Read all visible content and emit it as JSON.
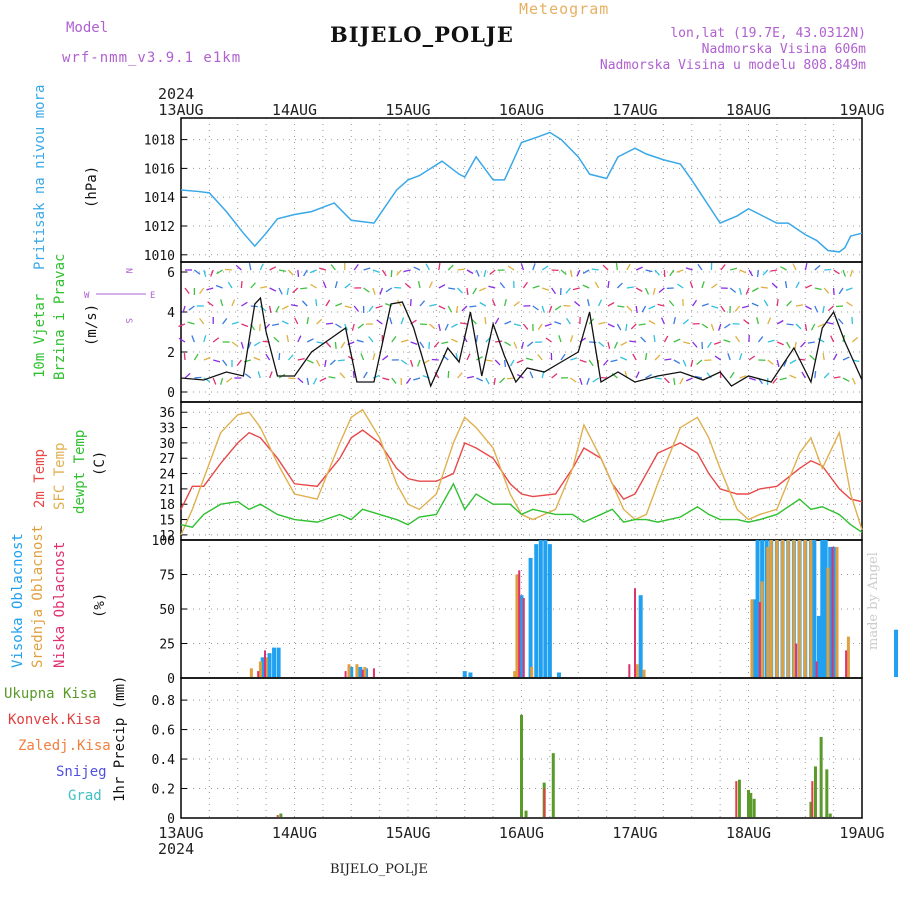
{
  "header": {
    "model_label": "Model",
    "model_version": "wrf-nmm_v3.9.1 e1km",
    "title": "Meteogram",
    "station": "BIJELO_POLJE",
    "lonlat": "lon,lat (19.7E, 43.0312N)",
    "altitude": "Nadmorska Visina 606m",
    "model_altitude": "Nadmorska Visina u modelu 808.849m"
  },
  "footer": {
    "station": "BIJELO_POLJE",
    "credit": "made by Angel"
  },
  "time_axis": {
    "year": "2024",
    "dates": [
      "13AUG",
      "14AUG",
      "15AUG",
      "16AUG",
      "17AUG",
      "18AUG",
      "19AUG"
    ]
  },
  "panel_labels": {
    "pressure_title": "Pritisak na nivou mora",
    "pressure_unit": "(hPa)",
    "wind_title_1": "10m Vjetar",
    "wind_title_2": "Brzina i Pravac",
    "wind_unit": "(m/s)",
    "compass_n": "N",
    "compass_s": "S",
    "compass_w": "W",
    "compass_e": "E",
    "temp_title_1": "2m Temp",
    "temp_title_2": "SFC Temp",
    "temp_title_3": "dewpt Temp",
    "temp_unit": "(C)",
    "cloud_title_1": "Visoka Oblacnost",
    "cloud_title_2": "Srednja Oblacnost",
    "cloud_title_3": "Niska Oblacnost",
    "cloud_unit": "(%)",
    "precip_title": "1hr Precip (mm)",
    "precip_legend": [
      "Ukupna Kisa",
      "Konvek.Kisa",
      "Zaledj.Kisa",
      "Snijeg",
      "Grad"
    ]
  },
  "colors": {
    "pressure": "#3aa8e8",
    "temp2m": "#e84848",
    "sfc": "#e0b050",
    "dewpt": "#30c030",
    "cloud_high": "#20a0f0",
    "cloud_mid": "#e0a040",
    "cloud_low": "#e03070",
    "precip_total": "#5a9a2a",
    "precip_conv": "#e04040",
    "precip_frz": "#f08040",
    "precip_snow": "#5050e0",
    "precip_hail": "#40c0c0",
    "wind_speed": "#111111",
    "wind_arrow": "#8a2be2",
    "purple_text": "#b060d0"
  },
  "chart_data": [
    {
      "type": "line",
      "name": "pressure",
      "ylabel": "Pritisak na nivou mora (hPa)",
      "ylim": [
        1009.5,
        1019.5
      ],
      "yticks": [
        1010,
        1012,
        1014,
        1016,
        1018
      ],
      "grid": true,
      "x_days": [
        0,
        0.15,
        0.25,
        0.4,
        0.55,
        0.65,
        0.75,
        0.85,
        1,
        1.15,
        1.35,
        1.5,
        1.7,
        1.9,
        2,
        2.1,
        2.3,
        2.45,
        2.5,
        2.6,
        2.75,
        2.85,
        3,
        3.15,
        3.25,
        3.35,
        3.5,
        3.6,
        3.75,
        3.85,
        4,
        4.1,
        4.25,
        4.4,
        4.5,
        4.6,
        4.75,
        4.9,
        5,
        5.15,
        5.25,
        5.35,
        5.5,
        5.6,
        5.7,
        5.8,
        5.85,
        5.9,
        6
      ],
      "values": [
        1014.5,
        1014.4,
        1014.3,
        1013,
        1011.5,
        1010.6,
        1011.5,
        1012.5,
        1012.8,
        1013,
        1013.6,
        1012.4,
        1012.2,
        1014.5,
        1015.2,
        1015.5,
        1016.5,
        1015.6,
        1015.4,
        1016.8,
        1015.2,
        1015.2,
        1017.8,
        1018.2,
        1018.5,
        1018,
        1016.8,
        1015.6,
        1015.3,
        1016.8,
        1017.4,
        1017,
        1016.6,
        1016.3,
        1015.2,
        1014,
        1012.2,
        1012.7,
        1013.2,
        1012.6,
        1012.2,
        1012.2,
        1011.4,
        1011,
        1010.3,
        1010.2,
        1010.5,
        1011.3,
        1011.5
      ],
      "series": [
        {
          "name": "Pritisak na nivou mora"
        }
      ]
    },
    {
      "type": "line",
      "name": "wind",
      "ylabel": "10m Vjetar Brzina i Pravac (m/s)",
      "ylim": [
        -0.5,
        6.5
      ],
      "yticks": [
        0,
        2,
        4,
        6
      ],
      "grid": true,
      "x_days": [
        0,
        0.2,
        0.4,
        0.55,
        0.65,
        0.7,
        0.75,
        0.85,
        1,
        1.15,
        1.3,
        1.45,
        1.55,
        1.7,
        1.85,
        1.95,
        2.05,
        2.2,
        2.35,
        2.45,
        2.55,
        2.65,
        2.75,
        2.85,
        2.95,
        3.05,
        3.2,
        3.35,
        3.5,
        3.6,
        3.7,
        3.85,
        4,
        4.2,
        4.4,
        4.6,
        4.75,
        4.85,
        5,
        5.2,
        5.4,
        5.55,
        5.65,
        5.75,
        5.85,
        6
      ],
      "values": [
        0.7,
        0.6,
        1,
        0.8,
        4.4,
        4.7,
        3,
        0.8,
        0.8,
        2,
        2.6,
        3.2,
        0.5,
        0.5,
        4.4,
        4.5,
        3.2,
        0.3,
        2.2,
        1.5,
        4,
        0.8,
        3.4,
        1.8,
        0.5,
        1.2,
        1,
        1.5,
        2,
        4,
        0.5,
        1,
        0.5,
        0.8,
        1,
        0.6,
        1,
        0.3,
        0.8,
        0.5,
        2.2,
        0.5,
        3.2,
        4,
        2.5,
        0.6
      ],
      "series": [
        {
          "name": "10m Vjetar Brzina i Pravac"
        }
      ]
    },
    {
      "type": "line",
      "name": "temperature",
      "ylabel": "(C)",
      "ylim": [
        11,
        38
      ],
      "yticks": [
        12,
        15,
        18,
        21,
        24,
        27,
        30,
        33,
        36
      ],
      "grid": true,
      "x_days": [
        0,
        0.1,
        0.2,
        0.35,
        0.5,
        0.6,
        0.7,
        0.85,
        1,
        1.2,
        1.4,
        1.5,
        1.6,
        1.75,
        1.9,
        2,
        2.1,
        2.25,
        2.4,
        2.5,
        2.6,
        2.75,
        2.9,
        3,
        3.1,
        3.3,
        3.45,
        3.55,
        3.7,
        3.8,
        3.9,
        4,
        4.1,
        4.2,
        4.4,
        4.55,
        4.65,
        4.75,
        4.9,
        5,
        5.1,
        5.25,
        5.45,
        5.55,
        5.65,
        5.8,
        5.9,
        6
      ],
      "series": [
        {
          "name": "2m Temp",
          "values": [
            17,
            21.5,
            21.5,
            26,
            30,
            32,
            31,
            27,
            22,
            21.5,
            27,
            31,
            32.5,
            30,
            25,
            23,
            22.5,
            22.5,
            24,
            30,
            29,
            27,
            22,
            20,
            19.5,
            20,
            25,
            29,
            27,
            22,
            19,
            20,
            24,
            28,
            30,
            28,
            24,
            21,
            20,
            20,
            21,
            21.5,
            25,
            26.5,
            25.5,
            21,
            19,
            18.5
          ]
        },
        {
          "name": "SFC Temp",
          "values": [
            12,
            17,
            23,
            32,
            35.5,
            36,
            33,
            26,
            20,
            19,
            30,
            35,
            36.5,
            31,
            22,
            18,
            17,
            20,
            30,
            35,
            33,
            29,
            20,
            16,
            15,
            17,
            25,
            33.5,
            27,
            22,
            17,
            15,
            16,
            22,
            33,
            35,
            31,
            25,
            17,
            15,
            16,
            17,
            28,
            31,
            25,
            32,
            20,
            13
          ]
        },
        {
          "name": "dewpt Temp",
          "values": [
            14,
            13.5,
            16,
            18,
            18.5,
            17,
            18,
            16,
            15,
            14.5,
            16,
            15,
            17,
            16,
            15,
            14,
            15.5,
            16,
            22,
            17,
            20,
            18,
            18,
            16,
            17,
            16,
            16,
            14.5,
            16,
            17,
            14.5,
            15,
            15,
            14.5,
            15.5,
            17.5,
            16,
            15,
            15,
            14.5,
            15,
            16,
            19,
            17,
            17.5,
            16,
            14,
            12.5
          ]
        }
      ]
    },
    {
      "type": "bar",
      "name": "clouds",
      "ylabel": "(%)",
      "ylim": [
        0,
        100
      ],
      "yticks": [
        0,
        25,
        50,
        75,
        100
      ],
      "grid": true,
      "series": [
        {
          "name": "Visoka Oblacnost",
          "x_days": [
            0.72,
            0.78,
            0.82,
            0.86,
            1.5,
            1.58,
            1.63,
            2.5,
            2.55,
            3.0,
            3.08,
            3.13,
            3.17,
            3.21,
            3.25,
            3.33,
            4.05,
            5.05,
            5.08,
            5.12,
            5.16,
            5.2,
            5.25,
            5.3,
            5.35,
            5.4,
            5.45,
            5.5,
            5.55,
            5.58,
            5.62,
            5.65,
            5.68,
            5.72,
            5.75,
            6.3
          ],
          "values": [
            15,
            18,
            22,
            22,
            8,
            8,
            7,
            5,
            4,
            60,
            87,
            97,
            100,
            100,
            97,
            4,
            60,
            57,
            100,
            100,
            100,
            100,
            100,
            100,
            100,
            100,
            100,
            100,
            100,
            100,
            45,
            100,
            100,
            95,
            95,
            35
          ]
        },
        {
          "name": "Srednja Oblacnost",
          "x_days": [
            0.62,
            0.7,
            0.75,
            1.48,
            1.55,
            1.62,
            2.94,
            2.96,
            3.09,
            4.02,
            4.08,
            5.03,
            5.12,
            5.17,
            5.2,
            5.25,
            5.3,
            5.35,
            5.4,
            5.45,
            5.5,
            5.55,
            5.7,
            5.78,
            5.88
          ],
          "values": [
            7,
            12,
            15,
            10,
            10,
            8,
            5,
            75,
            8,
            10,
            6,
            57,
            70,
            95,
            100,
            100,
            100,
            100,
            100,
            100,
            100,
            100,
            80,
            95,
            30
          ]
        },
        {
          "name": "Niska Oblacnost",
          "x_days": [
            0.68,
            0.74,
            1.45,
            1.6,
            1.7,
            2.98,
            3.02,
            3.95,
            4.0,
            5.1,
            5.42,
            5.6,
            5.74,
            5.86
          ],
          "values": [
            5,
            20,
            5,
            6,
            7,
            78,
            58,
            10,
            65,
            55,
            25,
            12,
            95,
            20
          ]
        }
      ]
    },
    {
      "type": "bar",
      "name": "precip",
      "ylabel": "1hr Precip (mm)",
      "ylim": [
        0,
        0.95
      ],
      "yticks": [
        0,
        0.2,
        0.4,
        0.6,
        0.8
      ],
      "grid": true,
      "series": [
        {
          "name": "Ukupna Kisa",
          "x_days": [
            0.88,
            3.0,
            3.04,
            3.2,
            3.28,
            4.92,
            5.0,
            5.02,
            5.05,
            5.55,
            5.59,
            5.64,
            5.69,
            5.72
          ],
          "values": [
            0.03,
            0.7,
            0.05,
            0.24,
            0.44,
            0.26,
            0.19,
            0.17,
            0.13,
            0.11,
            0.35,
            0.55,
            0.33,
            0.03
          ]
        },
        {
          "name": "Konvek.Kisa",
          "x_days": [
            0.87,
            3.22,
            4.91,
            5.58
          ],
          "values": [
            0.02,
            0.2,
            0.25,
            0.25
          ]
        },
        {
          "name": "Zaledj.Kisa",
          "x_days": [],
          "values": []
        },
        {
          "name": "Snijeg",
          "x_days": [],
          "values": []
        },
        {
          "name": "Grad",
          "x_days": [],
          "values": []
        }
      ]
    }
  ]
}
